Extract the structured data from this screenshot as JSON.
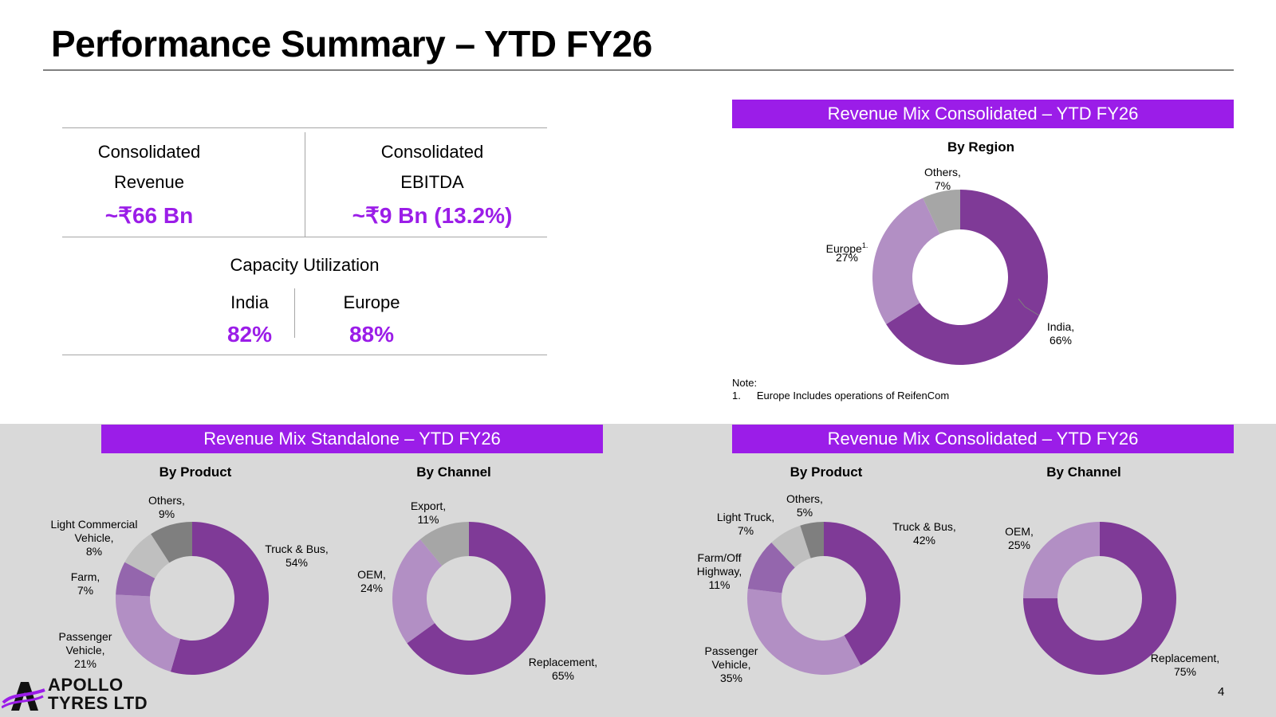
{
  "title": "Performance Summary – YTD FY26",
  "kpis": {
    "revenue": {
      "line1": "Consolidated",
      "line2": "Revenue",
      "value": "~₹66 Bn"
    },
    "ebitda": {
      "line1": "Consolidated",
      "line2": "EBITDA",
      "value": "~₹9 Bn (13.2%)"
    },
    "capacity": {
      "title": "Capacity Utilization",
      "india_label": "India",
      "india_value": "82%",
      "europe_label": "Europe",
      "europe_value": "88%"
    }
  },
  "banners": {
    "consolidated_top": "Revenue Mix Consolidated – YTD FY26",
    "standalone": "Revenue Mix Standalone – YTD FY26",
    "consolidated_bottom": "Revenue Mix Consolidated – YTD FY26"
  },
  "note": {
    "heading": "Note:",
    "item_number": "1.",
    "item_text": "Europe Includes operations of ReifenCom"
  },
  "page_number": "4",
  "logo": {
    "line1": "APOLLO",
    "line2": "TYRES LTD"
  },
  "colors": {
    "accent": "#9b1de8",
    "dark_purple": "#7f3a97",
    "light_purple": "#b28fc4",
    "mid_purple": "#9466ad",
    "gray": "#a6a6a6",
    "light_gray": "#bfbfbf",
    "dark_gray": "#7f7f7f"
  },
  "chart_data": [
    {
      "id": "region",
      "type": "pie",
      "title": "By Region",
      "series": [
        {
          "name": "India",
          "value": 66,
          "label": [
            "India,",
            "66%"
          ],
          "color": "#7f3a97"
        },
        {
          "name": "Europe",
          "value": 27,
          "label": [
            "Europe",
            "27%"
          ],
          "footnote": "1.",
          "color": "#b28fc4"
        },
        {
          "name": "Others",
          "value": 7,
          "label": [
            "Others,",
            "7%"
          ],
          "color": "#a6a6a6"
        }
      ]
    },
    {
      "id": "sa_product",
      "type": "pie",
      "title": "By Product",
      "series": [
        {
          "name": "Truck & Bus",
          "value": 54,
          "label": [
            "Truck & Bus,",
            "54%"
          ],
          "color": "#7f3a97"
        },
        {
          "name": "Passenger Vehicle",
          "value": 21,
          "label": [
            "Passenger",
            "Vehicle,",
            "21%"
          ],
          "color": "#b28fc4"
        },
        {
          "name": "Farm",
          "value": 7,
          "label": [
            "Farm,",
            "7%"
          ],
          "color": "#9466ad"
        },
        {
          "name": "Light Commercial Vehicle",
          "value": 8,
          "label": [
            "Light Commercial",
            "Vehicle,",
            "8%"
          ],
          "color": "#bfbfbf"
        },
        {
          "name": "Others",
          "value": 9,
          "label": [
            "Others,",
            "9%"
          ],
          "color": "#7f7f7f"
        }
      ]
    },
    {
      "id": "sa_channel",
      "type": "pie",
      "title": "By Channel",
      "series": [
        {
          "name": "Replacement",
          "value": 65,
          "label": [
            "Replacement,",
            "65%"
          ],
          "color": "#7f3a97"
        },
        {
          "name": "OEM",
          "value": 24,
          "label": [
            "OEM,",
            "24%"
          ],
          "color": "#b28fc4"
        },
        {
          "name": "Export",
          "value": 11,
          "label": [
            "Export,",
            "11%"
          ],
          "color": "#a6a6a6"
        }
      ]
    },
    {
      "id": "co_product",
      "type": "pie",
      "title": "By Product",
      "series": [
        {
          "name": "Truck & Bus",
          "value": 42,
          "label": [
            "Truck & Bus,",
            "42%"
          ],
          "color": "#7f3a97"
        },
        {
          "name": "Passenger Vehicle",
          "value": 35,
          "label": [
            "Passenger",
            "Vehicle,",
            "35%"
          ],
          "color": "#b28fc4"
        },
        {
          "name": "Farm/Off Highway",
          "value": 11,
          "label": [
            "Farm/Off",
            "Highway,",
            "11%"
          ],
          "color": "#9466ad"
        },
        {
          "name": "Light Truck",
          "value": 7,
          "label": [
            "Light Truck,",
            "7%"
          ],
          "color": "#bfbfbf"
        },
        {
          "name": "Others",
          "value": 5,
          "label": [
            "Others,",
            "5%"
          ],
          "color": "#7f7f7f"
        }
      ]
    },
    {
      "id": "co_channel",
      "type": "pie",
      "title": "By Channel",
      "series": [
        {
          "name": "Replacement",
          "value": 75,
          "label": [
            "Replacement,",
            "75%"
          ],
          "color": "#7f3a97"
        },
        {
          "name": "OEM",
          "value": 25,
          "label": [
            "OEM,",
            "25%"
          ],
          "color": "#b28fc4"
        }
      ]
    }
  ]
}
